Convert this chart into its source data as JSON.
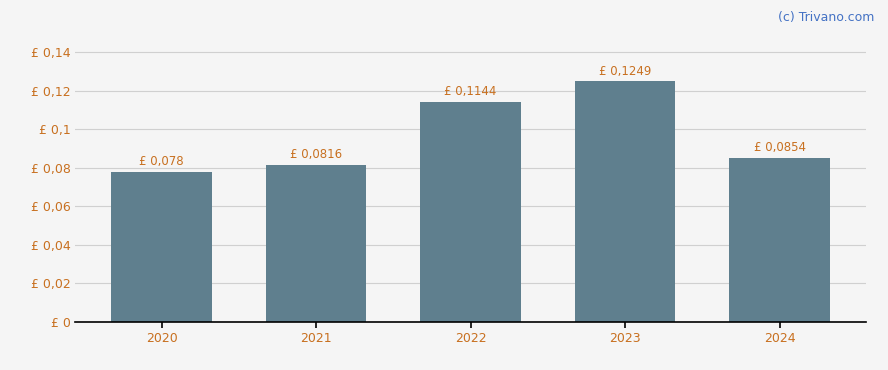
{
  "years": [
    2020,
    2021,
    2022,
    2023,
    2024
  ],
  "values": [
    0.078,
    0.0816,
    0.1144,
    0.1249,
    0.0854
  ],
  "labels": [
    "£ 0,078",
    "£ 0,0816",
    "£ 0,1144",
    "£ 0,1249",
    "£ 0,0854"
  ],
  "bar_color": "#5f7f8e",
  "background_color": "#f5f5f5",
  "ytick_labels": [
    "£ 0",
    "£ 0,02",
    "£ 0,04",
    "£ 0,06",
    "£ 0,08",
    "£ 0,1",
    "£ 0,12",
    "£ 0,14"
  ],
  "ytick_values": [
    0,
    0.02,
    0.04,
    0.06,
    0.08,
    0.1,
    0.12,
    0.14
  ],
  "ylim": [
    0,
    0.148
  ],
  "watermark": "(c) Trivano.com",
  "label_color": "#c87020",
  "tick_color": "#c87020",
  "watermark_color": "#4472c4",
  "label_fontsize": 8.5,
  "tick_fontsize": 9,
  "watermark_fontsize": 9,
  "bar_width": 0.65,
  "grid_color": "#d0d0d0",
  "axis_color": "#000000"
}
